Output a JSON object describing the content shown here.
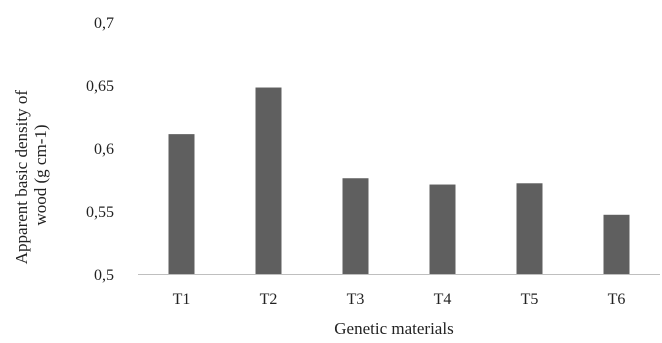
{
  "chart_data": {
    "type": "bar",
    "categories": [
      "T1",
      "T2",
      "T3",
      "T4",
      "T5",
      "T6"
    ],
    "values": [
      0.611,
      0.648,
      0.576,
      0.571,
      0.572,
      0.547
    ],
    "ylim": [
      0.5,
      0.7
    ],
    "yticks": [
      0.5,
      0.55,
      0.6,
      0.65,
      0.7
    ],
    "ytick_labels": [
      "0,5",
      "0,55",
      "0,6",
      "0,65",
      "0,7"
    ],
    "xlabel": "Genetic materials",
    "ylabel_line1": "Apparent basic density of",
    "ylabel_line2": "wood (g cm-1)",
    "grid": false,
    "legend": "none",
    "bar_color": "#5f5f5f",
    "axis_color": "#bfbfbf"
  }
}
